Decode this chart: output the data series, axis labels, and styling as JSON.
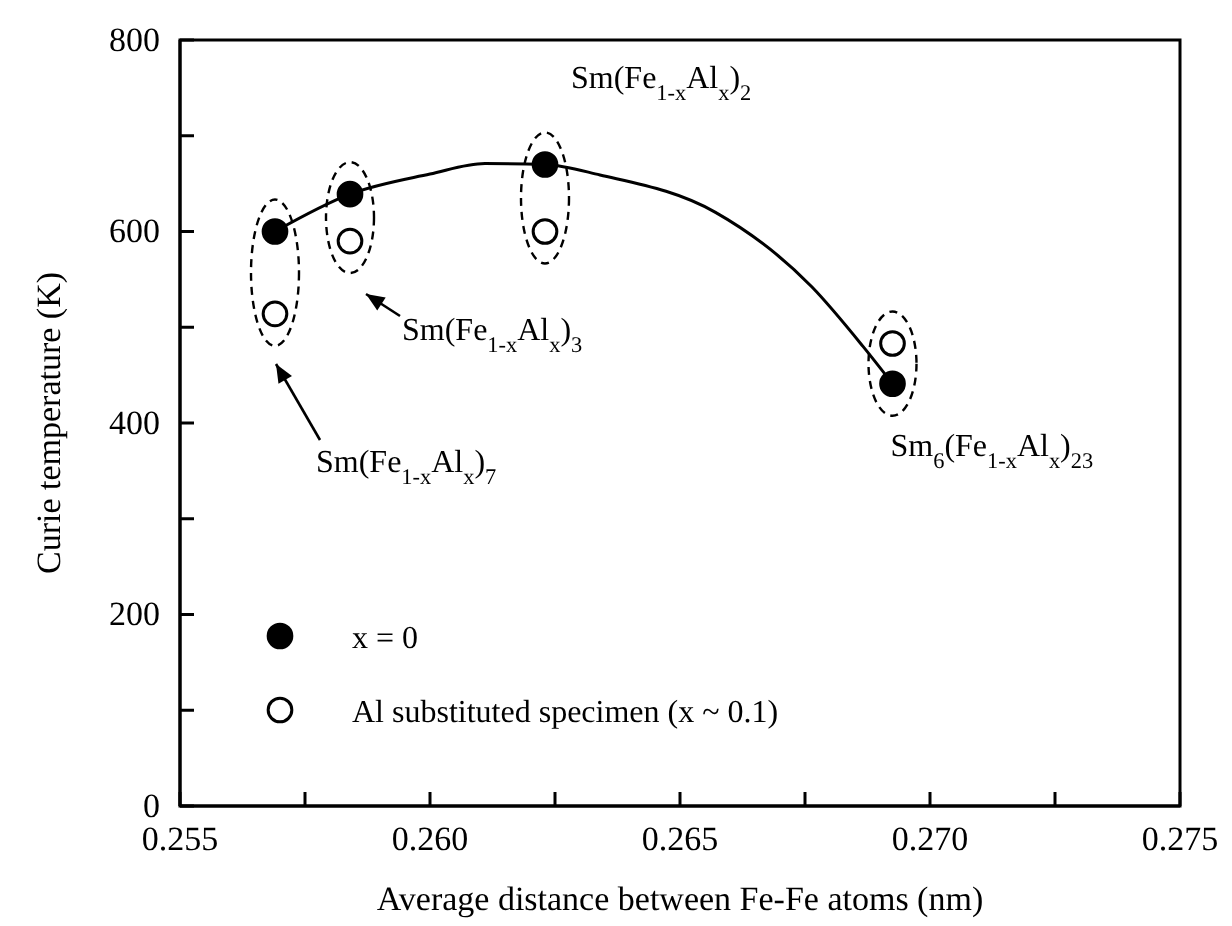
{
  "chart_data": {
    "type": "scatter",
    "xlabel": "Average distance between Fe-Fe atoms (nm)",
    "ylabel": "Curie temperature (K)",
    "xlim": [
      0.255,
      0.275
    ],
    "ylim": [
      0,
      800
    ],
    "xticks": [
      0.255,
      {
        "value": 0.2575,
        "label": null
      },
      "0.260",
      {
        "value": 0.2625,
        "label": null
      },
      0.265,
      {
        "value": 0.2675,
        "label": null
      },
      "0.270",
      {
        "value": 0.2725,
        "label": null
      },
      0.275
    ],
    "yticks": [
      0,
      {
        "value": 100,
        "label": null
      },
      200,
      {
        "value": 300,
        "label": null
      },
      400,
      {
        "value": 500,
        "label": null
      },
      600,
      {
        "value": 700,
        "label": null
      },
      800
    ],
    "legend": "bottom left",
    "grid": false,
    "series": [
      {
        "name": "x = 0",
        "marker": "circle",
        "color": "#000000",
        "x": [
          0.2569,
          0.2584,
          0.2623,
          0.26925
        ],
        "values": [
          600,
          639,
          670,
          441
        ]
      },
      {
        "name": "Al substituted specimen (x ~ 0.1)",
        "marker": "circle",
        "color": "#ffffff",
        "x": [
          0.2569,
          0.2584,
          0.2623,
          0.26925
        ],
        "values": [
          514,
          590,
          600,
          483
        ]
      },
      {
        "type": "line",
        "color": "#000000",
        "line_style": "solid",
        "marker": "none",
        "x": [
          0.2569,
          0.2584,
          0.26,
          0.2611,
          0.2623,
          0.2634,
          0.26571,
          0.26764,
          0.26866,
          0.26925
        ],
        "values": [
          600,
          639,
          660,
          671,
          670,
          659,
          620,
          542,
          480,
          441
        ]
      }
    ],
    "annotations": [
      "Sm(Fe$_{1-x}$Al$_{x}$)$_{7}$",
      "Sm(Fe$_{1-x}$Al$_{x}$)$_{3}$",
      {
        "text": "Sm(Fe$_{1-x}$Al$_{x}$)$_{2}$",
        "x": 0.2623,
        "y": 670
      },
      {
        "text": "Sm$_{6}$(Fe$_{1-x}$Al$_{x}$)$_{23}$",
        "x": 0.26925,
        "y": 441
      }
    ]
  }
}
